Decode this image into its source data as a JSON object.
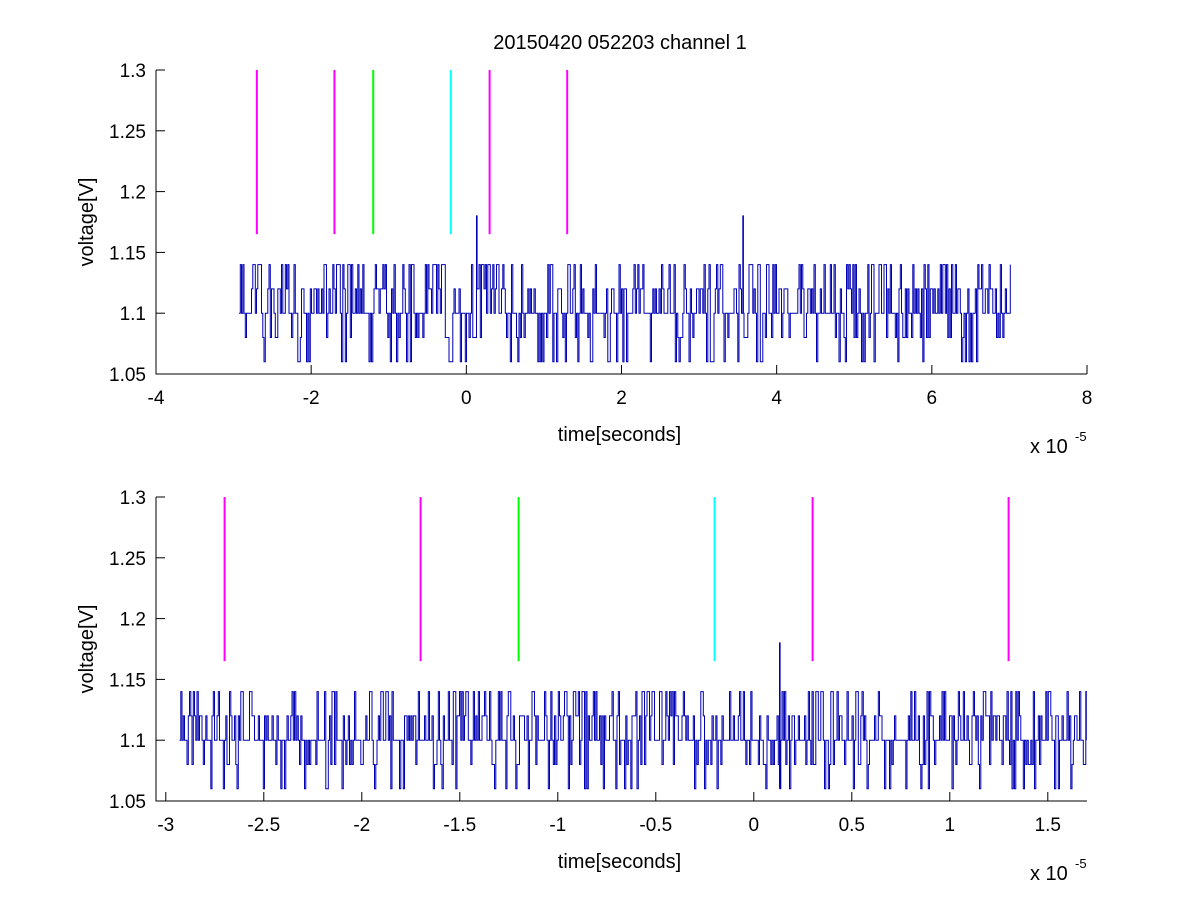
{
  "figure": {
    "title": "20150420 052203 channel 1"
  },
  "chart_data": [
    {
      "type": "line",
      "xlabel": "time[seconds]",
      "ylabel": "voltage[V]",
      "x_exponent_base": "x 10",
      "x_exponent": "-5",
      "xlim": [
        -4,
        8
      ],
      "ylim": [
        1.05,
        1.3
      ],
      "xticks": [
        -4,
        -2,
        0,
        2,
        4,
        6,
        8
      ],
      "xtick_labels": [
        "-4",
        "-2",
        "0",
        "2",
        "4",
        "6",
        "8"
      ],
      "yticks": [
        1.05,
        1.1,
        1.15,
        1.2,
        1.25,
        1.3
      ],
      "ytick_labels": [
        "1.05",
        "1.1",
        "1.15",
        "1.2",
        "1.25",
        "1.3"
      ],
      "grid": false,
      "signal": {
        "color": "#0000b4",
        "x_range": [
          -2.93,
          7.0
        ],
        "levels": [
          1.06,
          1.08,
          1.1,
          1.12,
          1.14
        ],
        "baseline": 1.1,
        "spikes": [
          {
            "x": 0.13,
            "y": 1.18
          },
          {
            "x": 3.57,
            "y": 1.18
          }
        ]
      },
      "markers": [
        {
          "x": -2.7,
          "color": "#ff00ff",
          "y_range": [
            1.165,
            1.3
          ]
        },
        {
          "x": -1.7,
          "color": "#ff00ff",
          "y_range": [
            1.165,
            1.3
          ]
        },
        {
          "x": -1.2,
          "color": "#00ff00",
          "y_range": [
            1.165,
            1.3
          ]
        },
        {
          "x": -0.2,
          "color": "#00ffff",
          "y_range": [
            1.165,
            1.3
          ]
        },
        {
          "x": 0.3,
          "color": "#ff00ff",
          "y_range": [
            1.165,
            1.3
          ]
        },
        {
          "x": 1.3,
          "color": "#ff00ff",
          "y_range": [
            1.165,
            1.3
          ]
        }
      ]
    },
    {
      "type": "line",
      "xlabel": "time[seconds]",
      "ylabel": "voltage[V]",
      "x_exponent_base": "x 10",
      "x_exponent": "-5",
      "xlim": [
        -3.05,
        1.7
      ],
      "ylim": [
        1.05,
        1.3
      ],
      "xticks": [
        -3,
        -2.5,
        -2,
        -1.5,
        -1,
        -0.5,
        0,
        0.5,
        1,
        1.5
      ],
      "xtick_labels": [
        "-3",
        "-2.5",
        "-2",
        "-1.5",
        "-1",
        "-0.5",
        "0",
        "0.5",
        "1",
        "1.5"
      ],
      "yticks": [
        1.05,
        1.1,
        1.15,
        1.2,
        1.25,
        1.3
      ],
      "ytick_labels": [
        "1.05",
        "1.1",
        "1.15",
        "1.2",
        "1.25",
        "1.3"
      ],
      "grid": false,
      "signal": {
        "color": "#0000b4",
        "x_range": [
          -2.93,
          1.7
        ],
        "levels": [
          1.06,
          1.08,
          1.1,
          1.12,
          1.14
        ],
        "baseline": 1.1,
        "spikes": [
          {
            "x": 0.13,
            "y": 1.18
          }
        ]
      },
      "markers": [
        {
          "x": -2.7,
          "color": "#ff00ff",
          "y_range": [
            1.165,
            1.3
          ]
        },
        {
          "x": -1.7,
          "color": "#ff00ff",
          "y_range": [
            1.165,
            1.3
          ]
        },
        {
          "x": -1.2,
          "color": "#00ff00",
          "y_range": [
            1.165,
            1.3
          ]
        },
        {
          "x": -0.2,
          "color": "#00ffff",
          "y_range": [
            1.165,
            1.3
          ]
        },
        {
          "x": 0.3,
          "color": "#ff00ff",
          "y_range": [
            1.165,
            1.3
          ]
        },
        {
          "x": 1.3,
          "color": "#ff00ff",
          "y_range": [
            1.165,
            1.3
          ]
        }
      ]
    }
  ]
}
